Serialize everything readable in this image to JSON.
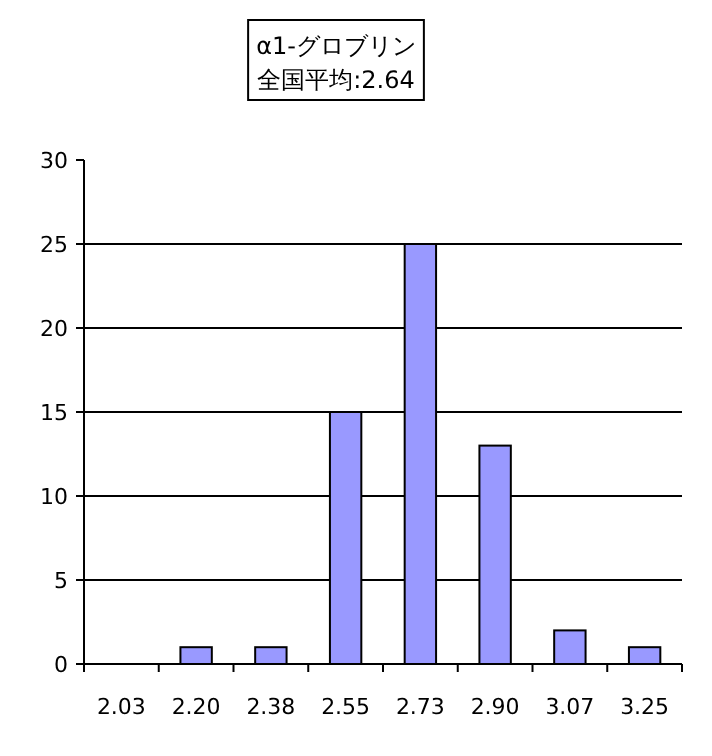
{
  "chart_data": {
    "type": "bar",
    "title": "α1-グロブリン",
    "subtitle": "全国平均:2.64",
    "categories": [
      "2.03",
      "2.20",
      "2.38",
      "2.55",
      "2.73",
      "2.90",
      "3.07",
      "3.25"
    ],
    "values": [
      0,
      1,
      1,
      15,
      25,
      13,
      2,
      1
    ],
    "color": "#9999ff",
    "ylim": [
      0,
      30
    ],
    "yticks": [
      0,
      5,
      10,
      15,
      20,
      25,
      30
    ],
    "grid": "y"
  }
}
